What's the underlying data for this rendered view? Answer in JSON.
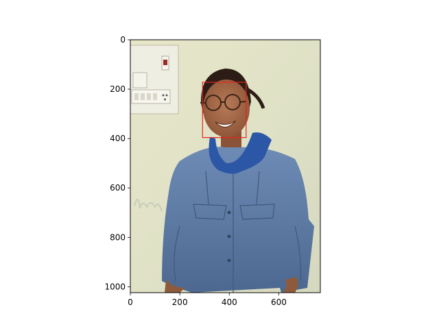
{
  "figure": {
    "x_ticks": [
      0,
      200,
      400,
      600
    ],
    "y_ticks": [
      0,
      200,
      400,
      600,
      800,
      1000
    ],
    "xlim": [
      0,
      768
    ],
    "ylim_inverted": [
      0,
      1024
    ],
    "detection_box": {
      "x_min": 292,
      "y_min": 172,
      "x_max": 468,
      "y_max": 396,
      "color": "#e8231f"
    }
  }
}
